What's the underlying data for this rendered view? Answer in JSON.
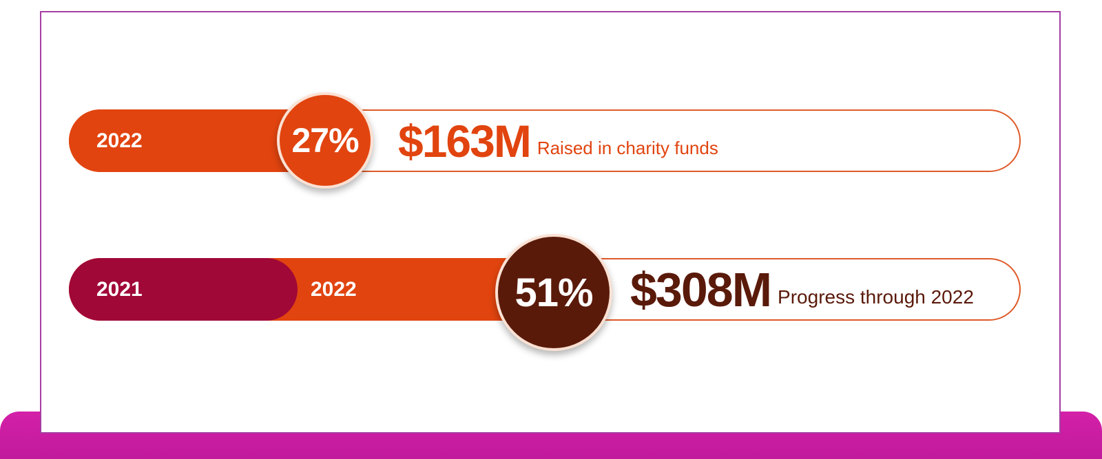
{
  "colors": {
    "orange": "#e1440f",
    "brown": "#5a1a0a",
    "crimson": "#a00838",
    "magenta_base": "#d320a8",
    "card_border": "#a53ea3"
  },
  "rows": [
    {
      "years": [
        "2022"
      ],
      "percent": "27%",
      "amount": "$163M",
      "caption": "Raised in charity funds"
    },
    {
      "years": [
        "2021",
        "2022"
      ],
      "percent": "51%",
      "amount": "$308M",
      "caption": "Progress through 2022"
    }
  ]
}
